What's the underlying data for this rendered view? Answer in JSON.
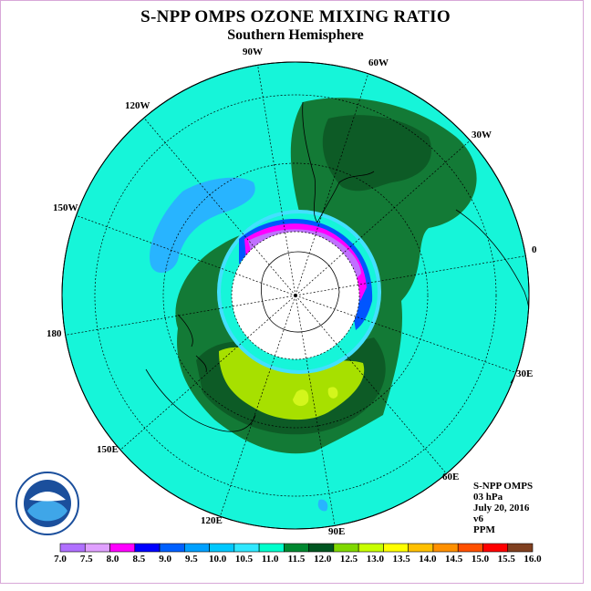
{
  "title": "S-NPP OMPS OZONE MIXING RATIO",
  "subtitle": "Southern Hemisphere",
  "longitude_labels": [
    "90W",
    "60W",
    "30W",
    "0",
    "30E",
    "60E",
    "90E",
    "120E",
    "150E",
    "180",
    "150W",
    "120W"
  ],
  "info": {
    "instrument": "S-NPP OMPS",
    "level": "03 hPa",
    "date": "July 20, 2016",
    "version": "v6",
    "units": "PPM"
  },
  "logo_text": "NOAA",
  "colorbar": {
    "labels": [
      "7.0",
      "7.5",
      "8.0",
      "8.5",
      "9.0",
      "9.5",
      "10.0",
      "10.5",
      "11.0",
      "11.5",
      "12.0",
      "12.5",
      "13.0",
      "13.5",
      "14.0",
      "14.5",
      "15.0",
      "15.5",
      "16.0"
    ],
    "colors": [
      "#b070ff",
      "#e0a0ff",
      "#ff00ff",
      "#0000ff",
      "#0060ff",
      "#00a0ff",
      "#00c8ff",
      "#30e8ff",
      "#00ffcc",
      "#008830",
      "#005520",
      "#80d800",
      "#c8ff00",
      "#ffff00",
      "#ffc000",
      "#ff9000",
      "#ff5000",
      "#ff0000",
      "#804020"
    ]
  },
  "colors": {
    "background": "#16f5d9",
    "dark_green": "#137a36",
    "darker_green": "#0d5b26",
    "light_green": "#a7e000",
    "lime": "#d3f61c",
    "sky": "#28b4ff",
    "cyan_light": "#43e0ff",
    "blue": "#0055ff",
    "magenta": "#ff00ff",
    "violet": "#c070ff"
  }
}
